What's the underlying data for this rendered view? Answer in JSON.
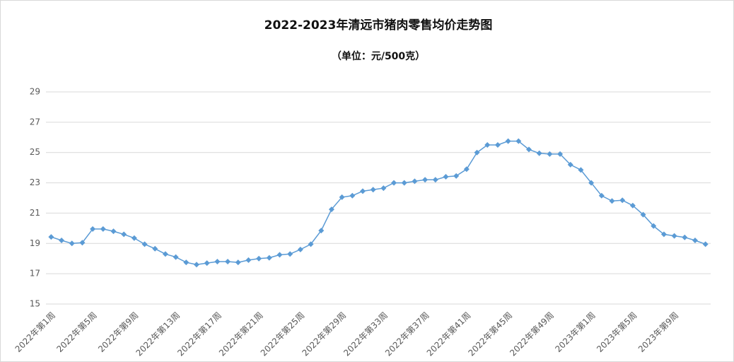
{
  "chart_data": {
    "type": "line",
    "title": "2022-2023年清远市猪肉零售均价走势图",
    "subtitle": "（单位：元/500克）",
    "categories": [
      "2022年第1周",
      null,
      null,
      null,
      "2022年第5周",
      null,
      null,
      null,
      "2022年第9周",
      null,
      null,
      null,
      "2022年第13周",
      null,
      null,
      null,
      "2022年第17周",
      null,
      null,
      null,
      "2022年第21周",
      null,
      null,
      null,
      "2022年第25周",
      null,
      null,
      null,
      "2022年第29周",
      null,
      null,
      null,
      "2022年第33周",
      null,
      null,
      null,
      "2022年第37周",
      null,
      null,
      null,
      "2022年第41周",
      null,
      null,
      null,
      "2022年第45周",
      null,
      null,
      null,
      "2022年第49周",
      null,
      null,
      null,
      "2023年第1周",
      null,
      null,
      null,
      "2023年第5周",
      null,
      null,
      null,
      "2023年第9周",
      null,
      null,
      null
    ],
    "series": [
      {
        "name": "猪肉零售均价",
        "color": "#5b9bd5",
        "values": [
          19.43,
          19.2,
          19.0,
          19.05,
          19.95,
          19.95,
          19.8,
          19.6,
          19.35,
          18.95,
          18.65,
          18.3,
          18.1,
          17.75,
          17.6,
          17.7,
          17.8,
          17.8,
          17.75,
          17.9,
          18.0,
          18.05,
          18.25,
          18.3,
          18.6,
          18.95,
          19.85,
          21.25,
          22.05,
          22.15,
          22.45,
          22.55,
          22.65,
          23.0,
          23.0,
          23.1,
          23.2,
          23.2,
          23.4,
          23.45,
          23.9,
          25.0,
          25.5,
          25.5,
          25.75,
          25.75,
          25.2,
          24.95,
          24.9,
          24.9,
          24.2,
          23.85,
          23.0,
          22.15,
          21.8,
          21.85,
          21.5,
          20.9,
          20.15,
          19.6,
          19.5,
          19.4,
          19.2,
          18.95
        ]
      }
    ],
    "ylim": [
      15,
      29
    ],
    "yticks": [
      15,
      17,
      19,
      21,
      23,
      25,
      27,
      29
    ],
    "grid": true
  }
}
